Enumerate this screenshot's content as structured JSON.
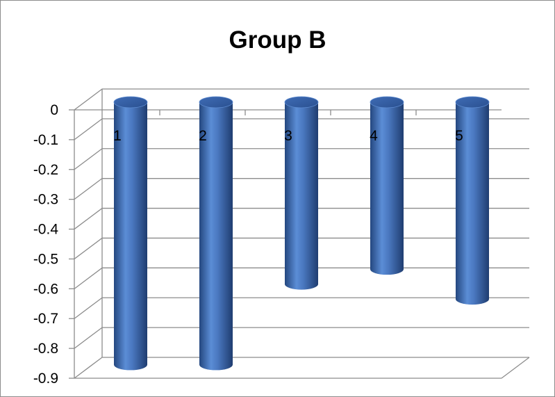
{
  "chart_data": {
    "type": "bar",
    "title": "Group B",
    "categories": [
      "1",
      "2",
      "3",
      "4",
      "5"
    ],
    "values": [
      -0.88,
      -0.88,
      -0.61,
      -0.56,
      -0.66
    ],
    "ylim": [
      -0.9,
      0
    ],
    "yticks": [
      "0",
      "-0.1",
      "-0.2",
      "-0.3",
      "-0.4",
      "-0.5",
      "-0.6",
      "-0.7",
      "-0.8",
      "-0.9"
    ],
    "xlabel": "",
    "ylabel": "",
    "grid": true,
    "legend": "none",
    "bar_color": "#4472c4"
  }
}
